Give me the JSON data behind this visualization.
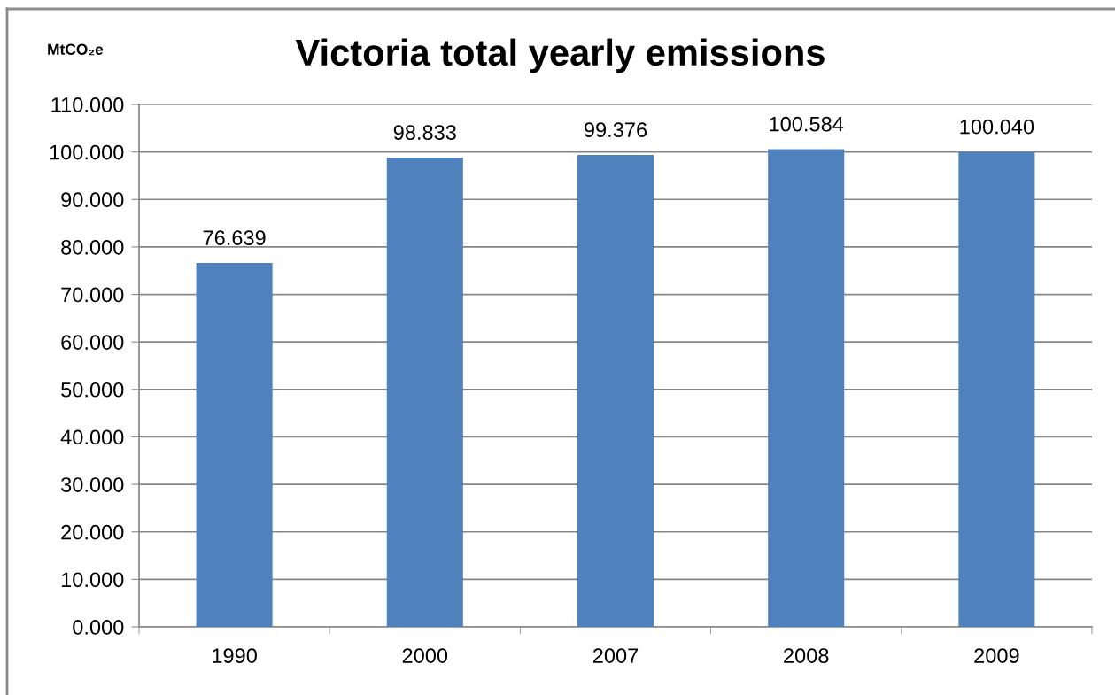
{
  "chart_data": {
    "type": "bar",
    "title": "Victoria total yearly emissions",
    "ylabel": "MtCO₂e",
    "categories": [
      "1990",
      "2000",
      "2007",
      "2008",
      "2009"
    ],
    "values": [
      76.639,
      98.833,
      99.376,
      100.584,
      100.04
    ],
    "value_labels": [
      "76.639",
      "98.833",
      "99.376",
      "100.584",
      "100.040"
    ],
    "color": "#4f81bd",
    "ylim": [
      0,
      110
    ],
    "yticks": [
      {
        "value": 0,
        "label": "0.000"
      },
      {
        "value": 10,
        "label": "10.000"
      },
      {
        "value": 20,
        "label": "20.000"
      },
      {
        "value": 30,
        "label": "30.000"
      },
      {
        "value": 40,
        "label": "40.000"
      },
      {
        "value": 50,
        "label": "50.000"
      },
      {
        "value": 60,
        "label": "60.000"
      },
      {
        "value": 70,
        "label": "70.000"
      },
      {
        "value": 80,
        "label": "80.000"
      },
      {
        "value": 90,
        "label": "90.000"
      },
      {
        "value": 100,
        "label": "100.000"
      },
      {
        "value": 110,
        "label": "110.000"
      }
    ],
    "grid": "y"
  }
}
